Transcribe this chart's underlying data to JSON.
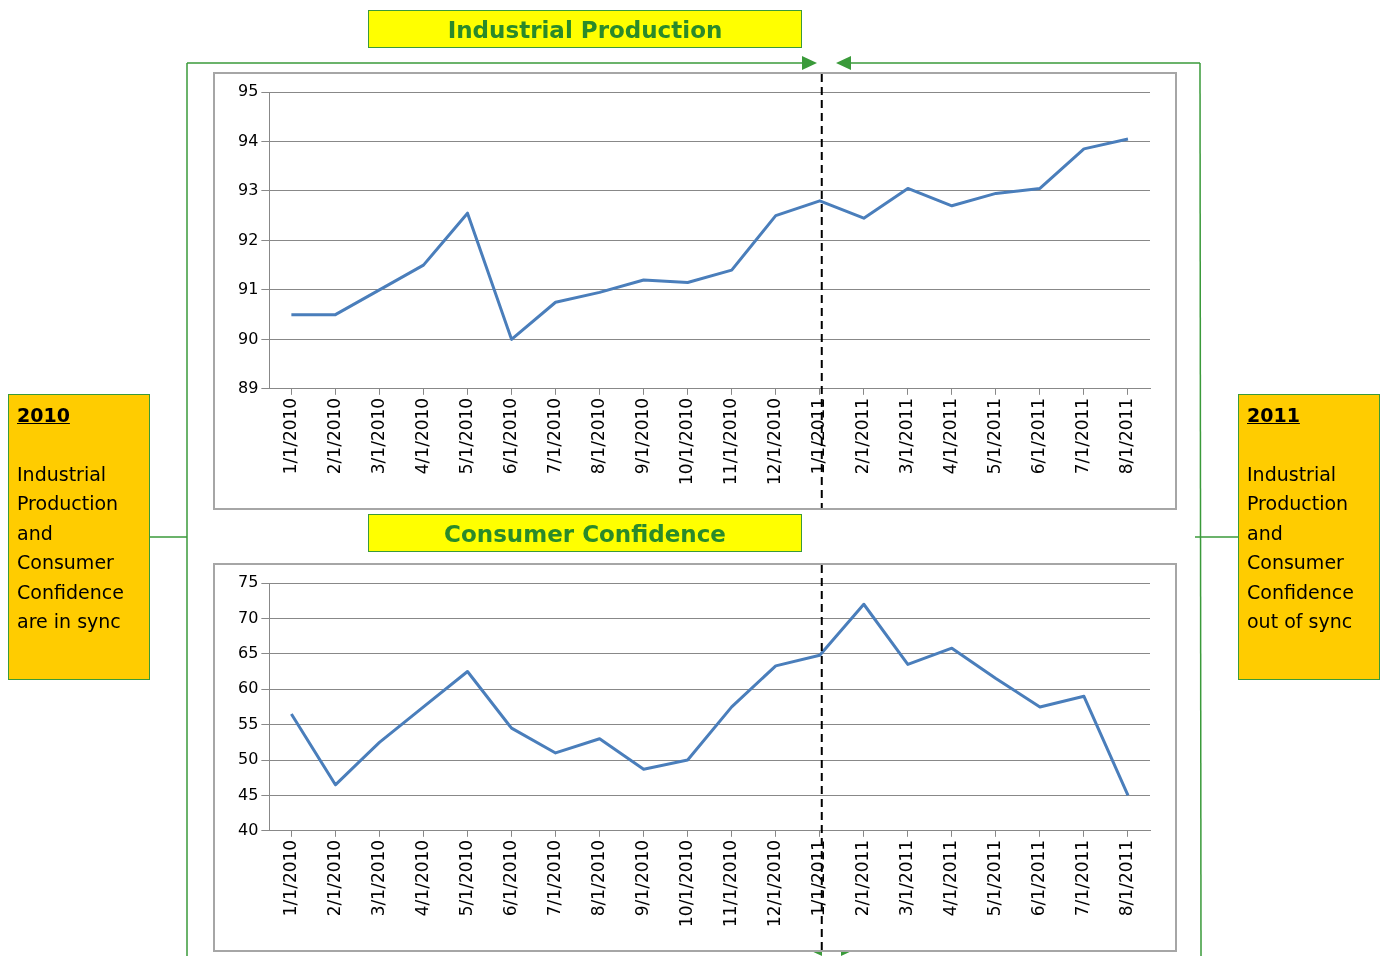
{
  "chart_data": [
    {
      "type": "line",
      "title": "Industrial Production",
      "categories": [
        "1/1/2010",
        "2/1/2010",
        "3/1/2010",
        "4/1/2010",
        "5/1/2010",
        "6/1/2010",
        "7/1/2010",
        "8/1/2010",
        "9/1/2010",
        "10/1/2010",
        "11/1/2010",
        "12/1/2010",
        "1/1/2011",
        "2/1/2011",
        "3/1/2011",
        "4/1/2011",
        "5/1/2011",
        "6/1/2011",
        "7/1/2011",
        "8/1/2011"
      ],
      "series": [
        {
          "color": "#4a7ebb",
          "values": [
            90.5,
            90.5,
            91.0,
            91.5,
            92.55,
            90.0,
            90.75,
            90.95,
            91.2,
            91.15,
            91.4,
            92.5,
            92.8,
            92.45,
            93.05,
            92.7,
            92.95,
            93.05,
            93.85,
            94.05
          ]
        }
      ],
      "ylim": [
        89,
        95
      ],
      "yticks": [
        89,
        90,
        91,
        92,
        93,
        94,
        95
      ],
      "grid": "y",
      "legend": false,
      "marker": "none",
      "ref_lines": [
        {
          "axis": "x",
          "value": "1/1/2011",
          "color": "#000000",
          "line_style": "dashed"
        }
      ],
      "annotations": [
        "2010",
        "Industrial Production and Consumer Confidence are in sync",
        "2011",
        "Industrial Production and Consumer Confidence out of sync"
      ]
    },
    {
      "type": "line",
      "title": "Consumer Confidence",
      "categories": [
        "1/1/2010",
        "2/1/2010",
        "3/1/2010",
        "4/1/2010",
        "5/1/2010",
        "6/1/2010",
        "7/1/2010",
        "8/1/2010",
        "9/1/2010",
        "10/1/2010",
        "11/1/2010",
        "12/1/2010",
        "1/1/2011",
        "2/1/2011",
        "3/1/2011",
        "4/1/2011",
        "5/1/2011",
        "6/1/2011",
        "7/1/2011",
        "8/1/2011"
      ],
      "series": [
        {
          "color": "#4a7ebb",
          "values": [
            56.5,
            46.5,
            52.5,
            57.5,
            62.5,
            54.5,
            51,
            53,
            48.7,
            50,
            57.5,
            63.3,
            64.8,
            72,
            63.5,
            65.8,
            61.5,
            57.5,
            59,
            45
          ]
        }
      ],
      "ylim": [
        40,
        75
      ],
      "yticks": [
        40,
        45,
        50,
        55,
        60,
        65,
        70,
        75
      ],
      "grid": "y",
      "legend": false,
      "marker": "none",
      "ref_lines": [
        {
          "axis": "x",
          "value": "1/1/2011",
          "color": "#000000",
          "line_style": "dashed"
        }
      ]
    }
  ]
}
